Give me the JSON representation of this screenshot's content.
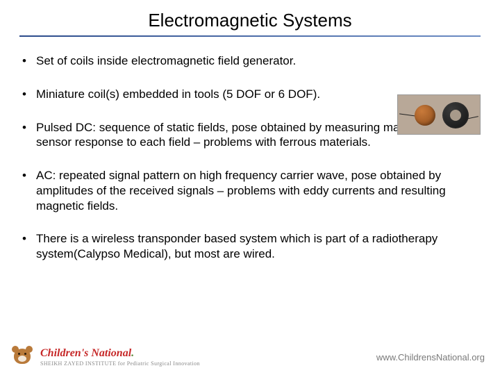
{
  "title": "Electromagnetic Systems",
  "bullets": [
    "Set of coils inside electromagnetic field generator.",
    "Miniature coil(s) embedded in tools (5 DOF or 6 DOF).",
    "Pulsed DC: sequence of static fields, pose obtained by measuring magnitude of sensor response to each field – problems with ferrous materials.",
    "AC: repeated signal pattern on high frequency carrier wave, pose obtained by amplitudes of the received signals – problems with eddy currents and resulting magnetic fields.",
    "There is a wireless transponder based system which is part of a radiotherapy system(Calypso Medical), but most are wired."
  ],
  "logo": {
    "main_prefix": "Children's National",
    "dot": ".",
    "sub": "SHEIKH ZAYED INSTITUTE for Pediatric Surgical Innovation"
  },
  "footer_url": "www.ChildrensNational.org",
  "colors": {
    "rule_start": "#2a4a8a",
    "rule_end": "#6c8cc4",
    "logo_red": "#c62828",
    "logo_green": "#5a8a3a",
    "footer_gray": "#7a7a7a"
  }
}
